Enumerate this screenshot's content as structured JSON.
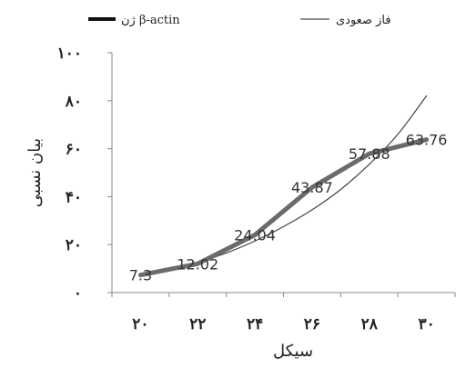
{
  "chart_data": {
    "type": "line",
    "xlabel": "سیکل",
    "ylabel": "بیان نسبی",
    "x_ticks": [
      "۲۰",
      "۲۲",
      "۲۴",
      "۲۶",
      "۲۸",
      "۳۰"
    ],
    "y_ticks": [
      "۰",
      "۲۰",
      "۴۰",
      "۶۰",
      "۸۰",
      "۱۰۰"
    ],
    "xlim": [
      19,
      31
    ],
    "ylim": [
      0,
      100
    ],
    "grid": false,
    "legend_position": "top",
    "series": [
      {
        "name": "ژن β-actin",
        "style": "thick",
        "color": "#6b6b6b",
        "x": [
          20,
          22,
          24,
          26,
          28,
          30
        ],
        "values": [
          7.3,
          12.02,
          24.04,
          43.87,
          57.88,
          63.76
        ],
        "labels": [
          "7.3",
          "12.02",
          "24.04",
          "43.87",
          "57.88",
          "63.76"
        ]
      },
      {
        "name": "فاز صعودی",
        "style": "thin",
        "color": "#444444",
        "x": [
          20,
          21,
          22,
          23,
          24,
          25,
          26,
          27,
          28,
          29,
          30
        ],
        "values": [
          7.3,
          9.5,
          12.5,
          16.5,
          21.5,
          27.5,
          34.5,
          43,
          53.5,
          66,
          82
        ]
      }
    ]
  }
}
